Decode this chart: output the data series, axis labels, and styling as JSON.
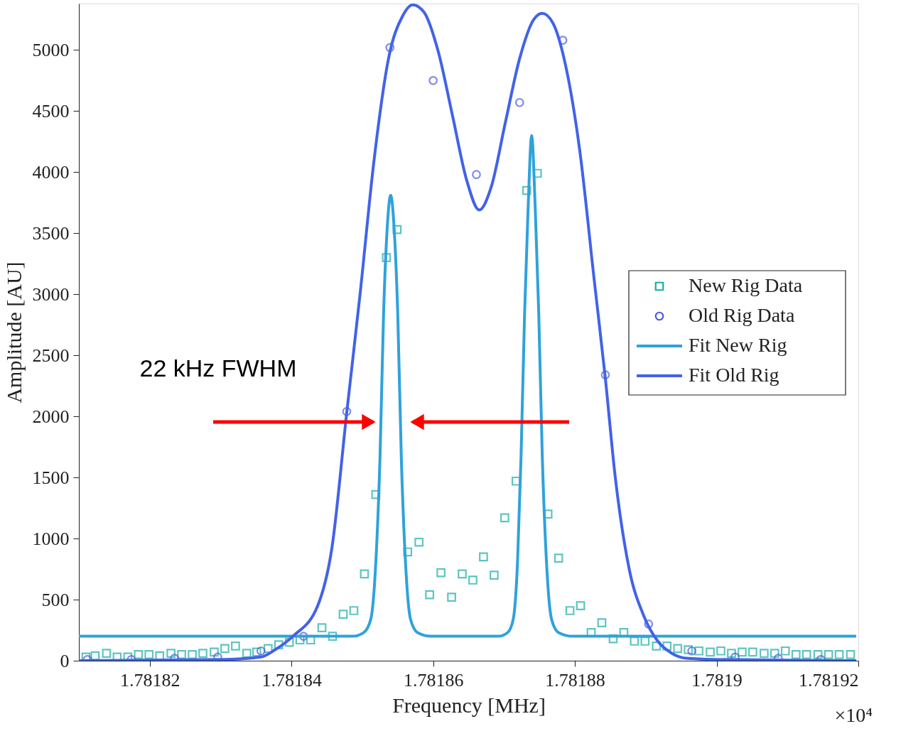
{
  "chart_data": {
    "type": "scatter",
    "xlabel": "Frequency [MHz]",
    "ylabel": "Amplitude [AU]",
    "xlim": [
      1.78181,
      1.78192
    ],
    "ylim": [
      0,
      5380
    ],
    "xticks": [
      1.78182,
      1.78184,
      1.78186,
      1.78188,
      1.7819,
      1.78192
    ],
    "yticks": [
      0,
      500,
      1000,
      1500,
      2000,
      2500,
      3000,
      3500,
      4000,
      4500,
      5000
    ],
    "grid": false,
    "legend": "right",
    "annotations": [
      "22 kHz FWHM",
      "×10⁴"
    ],
    "series": [
      {
        "name": "New Rig Data",
        "marker": "square",
        "color": "#1aada6",
        "x": [
          1.781811,
          1.7818123,
          1.7818139,
          1.7818154,
          1.7818169,
          1.7818184,
          1.7818199,
          1.7818214,
          1.781823,
          1.7818245,
          1.781826,
          1.7818275,
          1.7818291,
          1.7818306,
          1.7818321,
          1.7818337,
          1.7818351,
          1.7818367,
          1.7818382,
          1.7818397,
          1.7818412,
          1.7818427,
          1.7818443,
          1.7818458,
          1.7818473,
          1.7818488,
          1.7818503,
          1.7818519,
          1.7818534,
          1.7818549,
          1.7818564,
          1.781858,
          1.7818595,
          1.7818611,
          1.7818626,
          1.7818641,
          1.7818656,
          1.7818671,
          1.7818686,
          1.7818701,
          1.7818717,
          1.7818732,
          1.7818747,
          1.7818762,
          1.7818777,
          1.7818793,
          1.7818808,
          1.7818823,
          1.7818838,
          1.7818854,
          1.7818869,
          1.7818884,
          1.7818899,
          1.7818915,
          1.781893,
          1.7818945,
          1.781896,
          1.7818975,
          1.7818991,
          1.7819006,
          1.7819021,
          1.7819036,
          1.7819051,
          1.7819067,
          1.7819082,
          1.7819097,
          1.7819112,
          1.7819127,
          1.7819143,
          1.7819158,
          1.7819173,
          1.7819189
        ],
        "values": [
          30,
          40,
          60,
          30,
          30,
          50,
          50,
          40,
          60,
          50,
          50,
          60,
          70,
          100,
          120,
          60,
          70,
          100,
          130,
          150,
          170,
          170,
          270,
          200,
          380,
          410,
          710,
          1360,
          3300,
          3530,
          890,
          970,
          540,
          720,
          520,
          710,
          660,
          850,
          700,
          1170,
          1470,
          3850,
          3990,
          1200,
          840,
          410,
          450,
          230,
          310,
          180,
          230,
          160,
          160,
          120,
          120,
          100,
          90,
          80,
          70,
          80,
          60,
          70,
          70,
          60,
          60,
          80,
          50,
          50,
          50,
          50,
          50,
          50
        ]
      },
      {
        "name": "Old Rig Data",
        "marker": "circle",
        "color": "#4b5cdd",
        "x": [
          1.7818112,
          1.7818174,
          1.7818235,
          1.7818296,
          1.7818357,
          1.7818417,
          1.7818478,
          1.7818539,
          1.78186,
          1.7818661,
          1.7818722,
          1.7818783,
          1.7818843,
          1.7818904,
          1.7818965,
          1.7819026,
          1.7819087,
          1.7819147
        ],
        "values": [
          10,
          10,
          20,
          30,
          80,
          200,
          2040,
          5020,
          4750,
          3980,
          4570,
          5080,
          2340,
          300,
          80,
          30,
          20,
          10
        ]
      },
      {
        "name": "Fit New Rig",
        "type": "line",
        "line_style": "solid",
        "color": "#2fa2db",
        "x": [
          1.78181,
          1.7818487,
          1.7818502,
          1.7818512,
          1.7818519,
          1.7818525,
          1.781853,
          1.7818535,
          1.781854,
          1.7818545,
          1.781855,
          1.7818555,
          1.7818561,
          1.7818568,
          1.7818578,
          1.7818597,
          1.7818692,
          1.7818705,
          1.7818713,
          1.7818719,
          1.7818724,
          1.7818729,
          1.7818734,
          1.7818739,
          1.7818744,
          1.7818749,
          1.7818754,
          1.781876,
          1.7818767,
          1.7818777,
          1.7818797,
          1.7819197
        ],
        "values": [
          200,
          200,
          230,
          340,
          800,
          1670,
          2840,
          3530,
          3810,
          3530,
          2840,
          1670,
          800,
          340,
          230,
          200,
          200,
          230,
          340,
          800,
          1670,
          2840,
          3710,
          4300,
          3710,
          2840,
          1670,
          800,
          340,
          230,
          200,
          200
        ]
      },
      {
        "name": "Fit Old Rig",
        "type": "line",
        "line_style": "solid",
        "color": "#4262e8",
        "x": [
          1.78181,
          1.7818307,
          1.7818357,
          1.7818377,
          1.7818402,
          1.7818437,
          1.7818457,
          1.7818478,
          1.7818497,
          1.7818517,
          1.7818537,
          1.7818557,
          1.7818571,
          1.7818587,
          1.7818607,
          1.7818627,
          1.7818647,
          1.7818665,
          1.7818682,
          1.7818702,
          1.7818722,
          1.7818742,
          1.7818754,
          1.7818769,
          1.7818787,
          1.7818807,
          1.7818827,
          1.7818843,
          1.7818857,
          1.7818877,
          1.7818897,
          1.7818917,
          1.7818937,
          1.7818957,
          1.7818997,
          1.7819197
        ],
        "values": [
          0,
          10,
          30,
          90,
          200,
          450,
          920,
          2030,
          3010,
          4120,
          4930,
          5280,
          5370,
          5310,
          4990,
          4470,
          3940,
          3690,
          3880,
          4410,
          4930,
          5250,
          5300,
          5220,
          4870,
          4170,
          3130,
          2310,
          1500,
          740,
          370,
          160,
          60,
          20,
          10,
          0
        ]
      }
    ]
  }
}
